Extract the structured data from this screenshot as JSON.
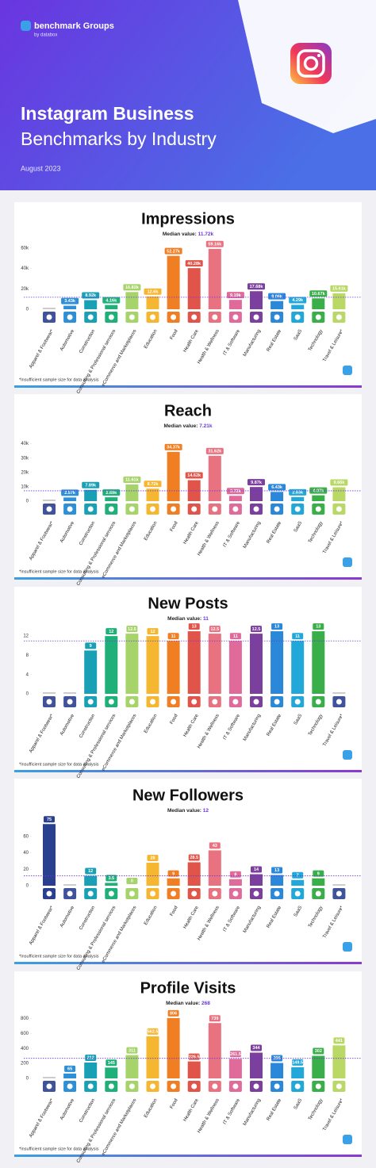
{
  "header": {
    "brand": "benchmark Groups",
    "brand_sub": "by databox",
    "title": "Instagram Business",
    "subtitle": "Benchmarks by Industry",
    "date": "August 2023"
  },
  "chart_data": [
    {
      "type": "bar",
      "title": "Impressions",
      "median_text": "Median value:",
      "median": 11.72,
      "median_label": "11.72k",
      "categories": [
        "Apparel & Footwear*",
        "Automotive",
        "Construction",
        "Consulting & Professional services",
        "eCommerce and Marketplaces",
        "Education",
        "Food",
        "Health Care",
        "Health & Wellness",
        "IT & Software",
        "Manufacturing",
        "Real Estate",
        "SaaS",
        "Technology",
        "Travel & Leisure*"
      ],
      "values": [
        null,
        3.43,
        8.92,
        4.16,
        16.82,
        12.6,
        52.27,
        40.28,
        59.16,
        9.19,
        17.68,
        8.06,
        4.29,
        10.67,
        15.61
      ],
      "value_labels": [
        null,
        "3.43k",
        "8.92k",
        "4.16k",
        "16.82k",
        "12.6k",
        "52.27k",
        "40.28k",
        "59.16k",
        "9.19k",
        "17.68k",
        "8.06k",
        "4.29k",
        "10.67k",
        "15.61k"
      ],
      "colors": [
        "#2b3f8f",
        "#2d8fd5",
        "#1aa0b5",
        "#1fb07a",
        "#a6d46a",
        "#f5b731",
        "#f07e22",
        "#e0544a",
        "#e8727f",
        "#e06a9a",
        "#7b3f9e",
        "#2b87d8",
        "#22a8d8",
        "#3aae49",
        "#b9d866"
      ],
      "ylim": [
        0,
        66
      ],
      "yticks": [
        0,
        {
          "value": 20,
          "label": "20k"
        },
        {
          "value": 40,
          "label": "40k"
        },
        {
          "value": 60,
          "label": "60k"
        }
      ],
      "footnote": "*Insufficient sample size for data analysis"
    },
    {
      "type": "bar",
      "title": "Reach",
      "median_text": "Median value:",
      "median": 7.21,
      "median_label": "7.21k",
      "categories": [
        "Apparel & Footwear*",
        "Automotive",
        "Construction",
        "Consulting & Professional services",
        "eCommerce and Marketplaces",
        "Education",
        "Food",
        "Health Care",
        "Health & Wellness",
        "IT & Software",
        "Manufacturing",
        "Real Estate",
        "SaaS",
        "Technology",
        "Travel & Leisure*"
      ],
      "values": [
        null,
        2.57,
        7.89,
        2.69,
        11.61,
        8.72,
        34.37,
        14.62,
        31.62,
        3.72,
        9.87,
        6.43,
        2.83,
        4.07,
        9.66
      ],
      "value_labels": [
        null,
        "2.57k",
        "7.89k",
        "2.69k",
        "11.61k",
        "8.72k",
        "34.37k",
        "14.62k",
        "31.62k",
        "3.72k",
        "9.87k",
        "6.43k",
        "2.83k",
        "4.07k",
        "9.66k"
      ],
      "colors": [
        "#2b3f8f",
        "#2d8fd5",
        "#1aa0b5",
        "#1fb07a",
        "#a6d46a",
        "#f5b731",
        "#f07e22",
        "#e0544a",
        "#e8727f",
        "#e06a9a",
        "#7b3f9e",
        "#2b87d8",
        "#22a8d8",
        "#3aae49",
        "#b9d866"
      ],
      "ylim": [
        0,
        47
      ],
      "yticks": [
        0,
        {
          "value": 10,
          "label": "10k"
        },
        {
          "value": 20,
          "label": "20k"
        },
        {
          "value": 30,
          "label": "30k"
        },
        {
          "value": 40,
          "label": "40k"
        }
      ],
      "footnote": "*Insufficient sample size for data analysis"
    },
    {
      "type": "bar",
      "title": "New Posts",
      "median_text": "Median value:",
      "median": 11,
      "median_label": "11",
      "categories": [
        "Apparel & Footwear*",
        "Automotive",
        "Construction",
        "Consulting & Professional services",
        "eCommerce and Marketplaces",
        "Education",
        "Food",
        "Health Care",
        "Health & Wellness",
        "IT & Software",
        "Manufacturing",
        "Real Estate",
        "SaaS",
        "Technology",
        "Travel & Leisure*"
      ],
      "values": [
        null,
        null,
        9,
        12,
        12.5,
        12,
        11,
        13,
        12.5,
        11,
        12.5,
        13,
        11,
        13,
        null
      ],
      "colors": [
        "#2b3f8f",
        "#2d8fd5",
        "#1aa0b5",
        "#1fb07a",
        "#a6d46a",
        "#f5b731",
        "#f07e22",
        "#e0544a",
        "#e8727f",
        "#e06a9a",
        "#7b3f9e",
        "#2b87d8",
        "#22a8d8",
        "#3aae49",
        "#b9d866"
      ],
      "ylim": [
        0,
        14
      ],
      "yticks": [
        0,
        4,
        8,
        12
      ],
      "footnote": "*Insufficient sample size for data analysis"
    },
    {
      "type": "bar",
      "title": "New Followers",
      "median_text": "Median value:",
      "median": 12,
      "median_label": "12",
      "categories": [
        "Apparel & Footwear*",
        "Automotive",
        "Construction",
        "Consulting & Professional services",
        "eCommerce and Marketplaces",
        "Education",
        "Food",
        "Health Care",
        "Health & Wellness",
        "IT & Software",
        "Manufacturing",
        "Real Estate",
        "SaaS",
        "Technology",
        "Travel & Leisure*"
      ],
      "values": [
        75,
        null,
        12,
        3.5,
        0,
        28,
        9,
        28.5,
        43,
        8,
        14,
        13,
        7,
        9,
        null
      ],
      "colors": [
        "#2b3f8f",
        "#2d8fd5",
        "#1aa0b5",
        "#1fb07a",
        "#a6d46a",
        "#f5b731",
        "#f07e22",
        "#e0544a",
        "#e8727f",
        "#e06a9a",
        "#7b3f9e",
        "#2b87d8",
        "#22a8d8",
        "#3aae49",
        "#b9d866"
      ],
      "ylim": [
        0,
        82
      ],
      "yticks": [
        0,
        20,
        40,
        60
      ],
      "footnote": "*Insufficient sample size for data analysis"
    },
    {
      "type": "bar",
      "title": "Profile Visits",
      "median_text": "Median value:",
      "median": 268,
      "median_label": "268",
      "categories": [
        "Apparel & Footwear*",
        "Automotive",
        "Construction",
        "Consulting & Professional services",
        "eCommerce and Marketplaces",
        "Education",
        "Food",
        "Health Care",
        "Health & Wellness",
        "IT & Software",
        "Manufacturing",
        "Real Estate",
        "SaaS",
        "Technology",
        "Travel & Leisure*"
      ],
      "values": [
        null,
        65,
        212,
        145,
        311,
        562.5,
        806,
        226.5,
        739,
        261.5,
        344,
        206,
        149.5,
        302,
        441
      ],
      "colors": [
        "#2b3f8f",
        "#2d8fd5",
        "#1aa0b5",
        "#1fb07a",
        "#a6d46a",
        "#f5b731",
        "#f07e22",
        "#e0544a",
        "#e8727f",
        "#e06a9a",
        "#7b3f9e",
        "#2b87d8",
        "#22a8d8",
        "#3aae49",
        "#b9d866"
      ],
      "ylim": [
        0,
        900
      ],
      "yticks": [
        0,
        200,
        400,
        600,
        800
      ],
      "footnote": "*Insufficient sample size for data analysis"
    }
  ]
}
